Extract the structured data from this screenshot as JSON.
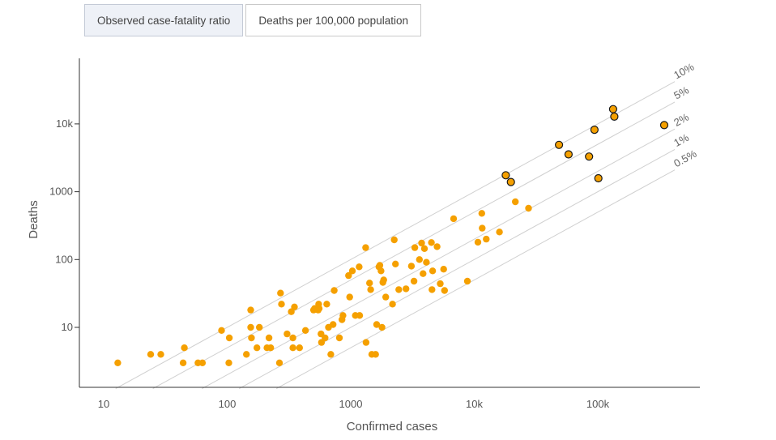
{
  "tabs": [
    {
      "label": "Observed case-fatality ratio",
      "active": true
    },
    {
      "label": "Deaths per 100,000 population",
      "active": false
    }
  ],
  "chart_data": {
    "type": "scatter",
    "xlabel": "Confirmed cases",
    "ylabel": "Deaths",
    "x_scale": "log",
    "y_scale": "log",
    "xlim": [
      7,
      500000
    ],
    "ylim": [
      1.25,
      70000
    ],
    "x_ticks": [
      {
        "value": 10,
        "label": "10"
      },
      {
        "value": 100,
        "label": "100"
      },
      {
        "value": 1000,
        "label": "1000"
      },
      {
        "value": 10000,
        "label": "10k"
      },
      {
        "value": 100000,
        "label": "100k"
      }
    ],
    "y_ticks": [
      {
        "value": 10,
        "label": "10"
      },
      {
        "value": 100,
        "label": "100"
      },
      {
        "value": 1000,
        "label": "1000"
      },
      {
        "value": 10000,
        "label": "10k"
      }
    ],
    "grid": false,
    "colors": {
      "point": "#f5a000",
      "highlight": "#f5a000",
      "highlight_stroke": "#1a1a1a",
      "reference": "#d0d0d0",
      "axis": "#333333"
    },
    "reference_lines": [
      {
        "label": "10%",
        "ratio": 0.1
      },
      {
        "label": "5%",
        "ratio": 0.05
      },
      {
        "label": "2%",
        "ratio": 0.02
      },
      {
        "label": "1%",
        "ratio": 0.01
      },
      {
        "label": "0.5%",
        "ratio": 0.005
      }
    ],
    "series": [
      {
        "highlight": false,
        "points": [
          [
            13,
            3
          ],
          [
            24,
            4
          ],
          [
            29,
            4
          ],
          [
            44,
            3
          ],
          [
            45,
            5
          ],
          [
            58,
            3
          ],
          [
            63,
            3
          ],
          [
            90,
            9
          ],
          [
            103,
            3
          ],
          [
            104,
            7
          ],
          [
            143,
            4
          ],
          [
            155,
            18
          ],
          [
            155,
            10
          ],
          [
            157,
            7
          ],
          [
            174,
            5
          ],
          [
            182,
            10
          ],
          [
            210,
            5
          ],
          [
            218,
            7
          ],
          [
            225,
            5
          ],
          [
            265,
            3
          ],
          [
            270,
            32
          ],
          [
            275,
            22
          ],
          [
            305,
            8
          ],
          [
            330,
            17
          ],
          [
            340,
            7
          ],
          [
            340,
            5
          ],
          [
            350,
            20
          ],
          [
            385,
            5
          ],
          [
            430,
            9
          ],
          [
            500,
            18
          ],
          [
            510,
            19
          ],
          [
            545,
            18
          ],
          [
            550,
            22
          ],
          [
            555,
            19
          ],
          [
            575,
            8
          ],
          [
            580,
            6
          ],
          [
            620,
            7
          ],
          [
            640,
            22
          ],
          [
            660,
            10
          ],
          [
            690,
            4
          ],
          [
            720,
            11
          ],
          [
            735,
            35
          ],
          [
            810,
            7
          ],
          [
            850,
            13
          ],
          [
            865,
            15
          ],
          [
            960,
            58
          ],
          [
            980,
            28
          ],
          [
            1030,
            68
          ],
          [
            1090,
            15
          ],
          [
            1170,
            78
          ],
          [
            1180,
            15
          ],
          [
            1320,
            150
          ],
          [
            1330,
            6
          ],
          [
            1420,
            45
          ],
          [
            1450,
            36
          ],
          [
            1480,
            4
          ],
          [
            1590,
            4
          ],
          [
            1620,
            11
          ],
          [
            1690,
            78
          ],
          [
            1720,
            82
          ],
          [
            1760,
            68
          ],
          [
            1790,
            10
          ],
          [
            1820,
            46
          ],
          [
            1850,
            50
          ],
          [
            1920,
            28
          ],
          [
            2180,
            22
          ],
          [
            2250,
            195
          ],
          [
            2300,
            86
          ],
          [
            2450,
            36
          ],
          [
            2800,
            37
          ],
          [
            3100,
            80
          ],
          [
            3250,
            48
          ],
          [
            3300,
            150
          ],
          [
            3600,
            100
          ],
          [
            3750,
            175
          ],
          [
            3850,
            62
          ],
          [
            3950,
            145
          ],
          [
            4100,
            91
          ],
          [
            4500,
            178
          ],
          [
            4550,
            36
          ],
          [
            4600,
            68
          ],
          [
            5000,
            155
          ],
          [
            5300,
            44
          ],
          [
            5650,
            72
          ],
          [
            5750,
            35
          ],
          [
            6800,
            400
          ],
          [
            8800,
            48
          ],
          [
            10700,
            180
          ],
          [
            11500,
            480
          ],
          [
            11600,
            290
          ],
          [
            12500,
            200
          ],
          [
            16000,
            255
          ],
          [
            21500,
            710
          ],
          [
            27500,
            570
          ]
        ]
      },
      {
        "highlight": true,
        "points": [
          [
            18000,
            1750
          ],
          [
            19800,
            1390
          ],
          [
            48500,
            4900
          ],
          [
            58000,
            3550
          ],
          [
            85000,
            3300
          ],
          [
            94000,
            8200
          ],
          [
            101000,
            1580
          ],
          [
            133000,
            16500
          ],
          [
            136000,
            12800
          ],
          [
            345000,
            9600
          ]
        ]
      }
    ]
  }
}
